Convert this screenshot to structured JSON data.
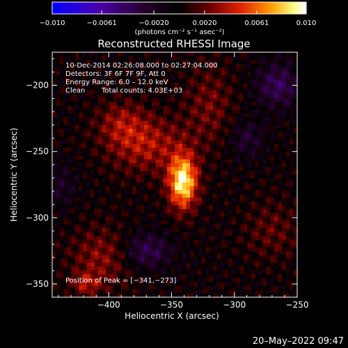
{
  "colorbar": {
    "tick_labels": [
      "−0.010",
      "−0.0061",
      "−0.0020",
      "0.0020",
      "0.0061",
      "0.010"
    ],
    "tick_values": [
      -0.01,
      -0.0061,
      -0.002,
      0.002,
      0.0061,
      0.01
    ],
    "range": [
      -0.01,
      0.01
    ],
    "unit_label": "(photons cm⁻² s⁻¹ asec⁻²)",
    "colormap": [
      "#0000ff",
      "#4a00b0",
      "#2a0030",
      "#000000",
      "#6a0000",
      "#e02000",
      "#ff9a00",
      "#ffff80",
      "#ffffff"
    ]
  },
  "plot": {
    "title": "Reconstructed RHESSI Image",
    "annotations": {
      "line1": "10-Dec-2014 02:26:08.000 to 02:27:04.000",
      "line2": "Detectors: 3F 6F 7F 9F, Att 0",
      "line3": "Energy Range: 6.0 – 12.0 keV",
      "line4a": "Clean",
      "line4b": "Total counts: 4.03E+03",
      "peak": "Position of Peak = [−341,−273]"
    }
  },
  "footer": {
    "timestamp": "20–May–2022 09:47"
  },
  "chart_data": {
    "type": "heatmap",
    "title": "Reconstructed RHESSI Image",
    "xlabel": "Heliocentric X (arcsec)",
    "ylabel": "Heliocentric Y (arcsec)",
    "xlim": [
      -445,
      -250
    ],
    "ylim": [
      -360,
      -175
    ],
    "x_ticks": [
      -400,
      -350,
      -300,
      -250
    ],
    "y_ticks": [
      -200,
      -250,
      -300,
      -350
    ],
    "x_tick_labels": [
      "−400",
      "−350",
      "−300",
      "−250"
    ],
    "y_tick_labels": [
      "−200",
      "−250",
      "−300",
      "−350"
    ],
    "peak_position": [
      -341,
      -273
    ],
    "peak_value": 0.01,
    "sources": [
      {
        "x": -341,
        "y": -273,
        "sx": 8,
        "sy": 14,
        "amp": 0.0095
      },
      {
        "x": -370,
        "y": -245,
        "sx": 22,
        "sy": 15,
        "amp": 0.0035
      },
      {
        "x": -390,
        "y": -228,
        "sx": 14,
        "sy": 12,
        "amp": 0.0025
      },
      {
        "x": -320,
        "y": -215,
        "sx": 14,
        "sy": 22,
        "amp": 0.0022
      },
      {
        "x": -405,
        "y": -330,
        "sx": 18,
        "sy": 16,
        "amp": 0.0028
      },
      {
        "x": -418,
        "y": -350,
        "sx": 8,
        "sy": 6,
        "amp": 0.003
      },
      {
        "x": -270,
        "y": -310,
        "sx": 16,
        "sy": 16,
        "amp": 0.0018
      }
    ],
    "negative_regions": [
      {
        "x": -265,
        "y": -200,
        "sx": 12,
        "sy": 12,
        "amp": -0.004
      },
      {
        "x": -370,
        "y": -325,
        "sx": 14,
        "sy": 10,
        "amp": -0.0038
      },
      {
        "x": -290,
        "y": -240,
        "sx": 10,
        "sy": 10,
        "amp": -0.0025
      },
      {
        "x": -440,
        "y": -275,
        "sx": 10,
        "sy": 12,
        "amp": -0.002
      }
    ]
  }
}
